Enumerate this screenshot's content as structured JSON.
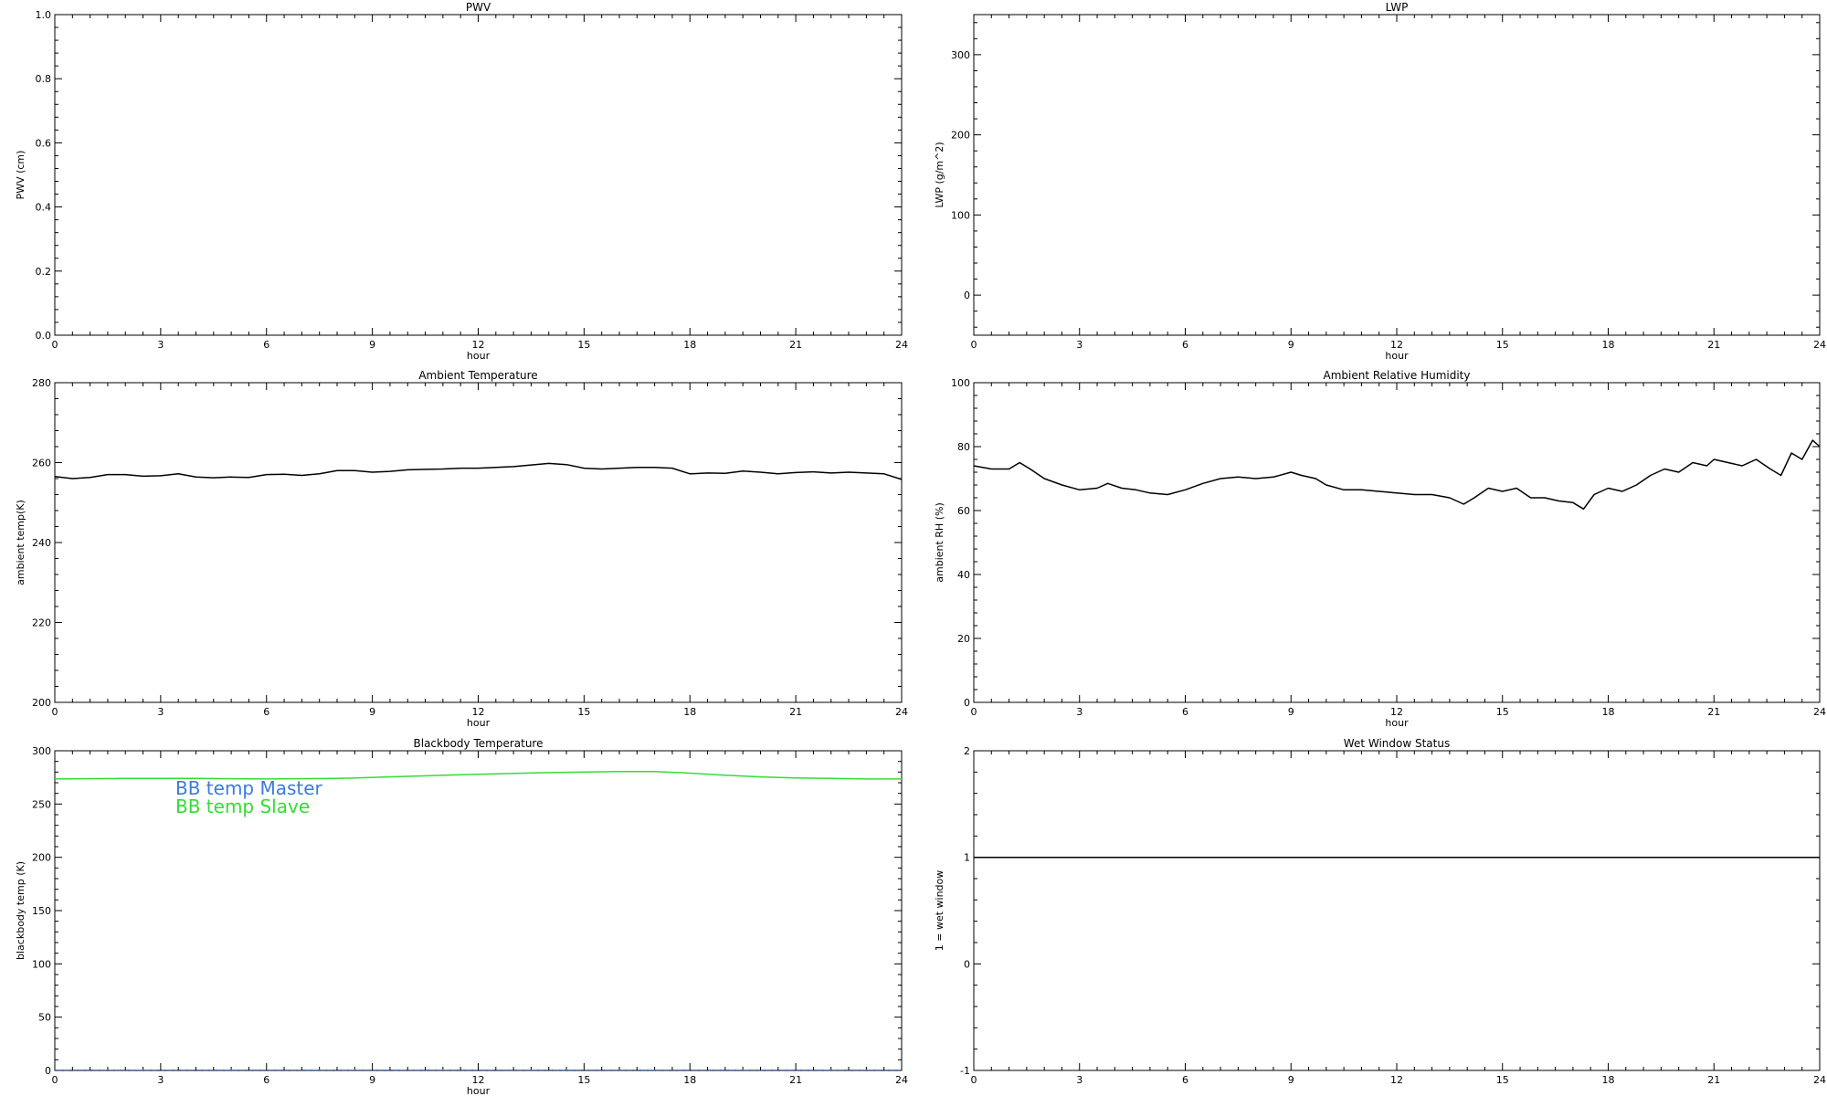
{
  "chart_data": [
    {
      "type": "line",
      "title": "PWV",
      "xlabel": "hour",
      "ylabel": "PWV (cm)",
      "xlim": [
        0,
        24
      ],
      "ylim": [
        0,
        1
      ],
      "xticks": [
        "0",
        "3",
        "6",
        "9",
        "12",
        "15",
        "18",
        "21",
        "24"
      ],
      "yticks": [
        "0.0",
        "0.2",
        "0.4",
        "0.6",
        "0.8",
        "1.0"
      ],
      "series": []
    },
    {
      "type": "line",
      "title": "LWP",
      "xlabel": "hour",
      "ylabel": "LWP (g/m^2)",
      "xlim": [
        0,
        24
      ],
      "ylim": [
        -50,
        350
      ],
      "xticks": [
        "0",
        "3",
        "6",
        "9",
        "12",
        "15",
        "18",
        "21",
        "24"
      ],
      "yticks": [
        "0",
        "100",
        "200",
        "300"
      ],
      "series": []
    },
    {
      "type": "line",
      "title": "Ambient Temperature",
      "xlabel": "hour",
      "ylabel": "ambient temp(K)",
      "xlim": [
        0,
        24
      ],
      "ylim": [
        200,
        280
      ],
      "xticks": [
        "0",
        "3",
        "6",
        "9",
        "12",
        "15",
        "18",
        "21",
        "24"
      ],
      "yticks": [
        "200",
        "220",
        "240",
        "260",
        "280"
      ],
      "series": [
        {
          "color": "#000000",
          "x": [
            0,
            0.5,
            1,
            1.5,
            2,
            2.5,
            3,
            3.5,
            4,
            4.5,
            5,
            5.5,
            6,
            6.5,
            7,
            7.5,
            8,
            8.5,
            9,
            9.5,
            10,
            10.5,
            11,
            11.5,
            12,
            12.5,
            13,
            13.5,
            14,
            14.5,
            15,
            15.5,
            16,
            16.5,
            17,
            17.5,
            18,
            18.5,
            19,
            19.5,
            20,
            20.5,
            21,
            21.5,
            22,
            22.5,
            23,
            23.5,
            24
          ],
          "y": [
            256.5,
            256,
            256.3,
            257,
            257,
            256.6,
            256.7,
            257.2,
            256.4,
            256.2,
            256.4,
            256.3,
            257,
            257.1,
            256.8,
            257.2,
            258,
            258,
            257.6,
            257.8,
            258.2,
            258.3,
            258.4,
            258.6,
            258.6,
            258.8,
            259,
            259.4,
            259.8,
            259.5,
            258.6,
            258.4,
            258.6,
            258.8,
            258.8,
            258.6,
            257.2,
            257.4,
            257.3,
            257.9,
            257.6,
            257.2,
            257.5,
            257.7,
            257.4,
            257.6,
            257.4,
            257.2,
            255.8
          ]
        }
      ]
    },
    {
      "type": "line",
      "title": "Ambient Relative Humidity",
      "xlabel": "hour",
      "ylabel": "ambient RH (%)",
      "xlim": [
        0,
        24
      ],
      "ylim": [
        0,
        100
      ],
      "xticks": [
        "0",
        "3",
        "6",
        "9",
        "12",
        "15",
        "18",
        "21",
        "24"
      ],
      "yticks": [
        "0",
        "20",
        "40",
        "60",
        "80",
        "100"
      ],
      "series": [
        {
          "color": "#000000",
          "x": [
            0,
            0.5,
            1,
            1.3,
            1.6,
            2,
            2.5,
            3,
            3.5,
            3.8,
            4.2,
            4.6,
            5,
            5.5,
            6,
            6.5,
            7,
            7.5,
            8,
            8.5,
            9,
            9.3,
            9.7,
            10,
            10.5,
            11,
            11.5,
            12,
            12.5,
            13,
            13.5,
            13.9,
            14.2,
            14.6,
            15,
            15.4,
            15.8,
            16.2,
            16.6,
            17,
            17.3,
            17.6,
            18,
            18.4,
            18.8,
            19.2,
            19.6,
            20,
            20.4,
            20.8,
            21,
            21.4,
            21.8,
            22.2,
            22.6,
            22.9,
            23.2,
            23.5,
            23.8,
            24
          ],
          "y": [
            74,
            73,
            73,
            75,
            73,
            70,
            68,
            66.5,
            67,
            68.5,
            67,
            66.5,
            65.5,
            65,
            66.5,
            68.5,
            70,
            70.5,
            70,
            70.5,
            72,
            71,
            70,
            68,
            66.5,
            66.5,
            66,
            65.5,
            65,
            65,
            64,
            62,
            64,
            67,
            66,
            67,
            64,
            64,
            63,
            62.5,
            60.5,
            65,
            67,
            66,
            68,
            71,
            73,
            72,
            75,
            74,
            76,
            75,
            74,
            76,
            73,
            71,
            78,
            76,
            82,
            80
          ]
        }
      ]
    },
    {
      "type": "line",
      "title": "Blackbody Temperature",
      "xlabel": "hour",
      "ylabel": "blackbody temp (K)",
      "xlim": [
        0,
        24
      ],
      "ylim": [
        0,
        300
      ],
      "xticks": [
        "0",
        "3",
        "6",
        "9",
        "12",
        "15",
        "18",
        "21",
        "24"
      ],
      "yticks": [
        "0",
        "50",
        "100",
        "150",
        "200",
        "250",
        "300"
      ],
      "legend": "upper-left",
      "series": [
        {
          "name": "BB temp Master",
          "color": "#3a7be0",
          "x": [
            0,
            3,
            6,
            9,
            12,
            15,
            18,
            21,
            24
          ],
          "y": [
            0,
            0,
            0,
            0,
            0,
            0,
            0,
            0,
            0
          ]
        },
        {
          "name": "BB temp Slave",
          "color": "#33dd33",
          "x": [
            0,
            2,
            4,
            6,
            8,
            10,
            12,
            14,
            16,
            17,
            18,
            19,
            20,
            21,
            22,
            23,
            24
          ],
          "y": [
            273.5,
            274,
            274,
            273.5,
            274,
            276,
            278,
            279.5,
            280.5,
            280.5,
            279,
            277,
            275.5,
            274.5,
            274,
            273.5,
            273.5
          ]
        }
      ]
    },
    {
      "type": "line",
      "title": "Wet Window Status",
      "xlabel": "",
      "ylabel": "1 = wet window",
      "xlim": [
        0,
        24
      ],
      "ylim": [
        -1,
        2
      ],
      "xticks": [
        "0",
        "3",
        "6",
        "9",
        "12",
        "15",
        "18",
        "21",
        "24"
      ],
      "yticks": [
        "-1",
        "0",
        "1",
        "2"
      ],
      "series": [
        {
          "color": "#000000",
          "x": [
            0,
            24
          ],
          "y": [
            1,
            1
          ]
        }
      ]
    }
  ]
}
